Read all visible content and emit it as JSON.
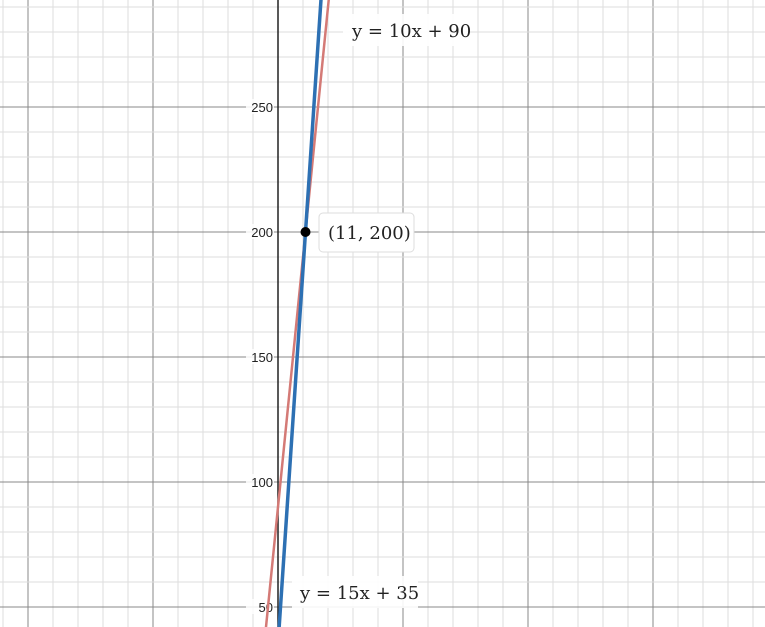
{
  "chart_data": {
    "type": "line",
    "title": "",
    "xlabel": "",
    "ylabel": "",
    "xlim": [
      -111.2,
      194.8
    ],
    "ylim": [
      42,
      292.8
    ],
    "grid": true,
    "major_step": 50,
    "minor_step": 10,
    "y_ticks": [
      "50",
      "100",
      "150",
      "200",
      "250"
    ],
    "series": [
      {
        "name": "y = 10x + 90",
        "slope": 10,
        "intercept": 90,
        "color": "#d47a76"
      },
      {
        "name": "y = 15x + 35",
        "slope": 15,
        "intercept": 35,
        "color": "#2d70b3"
      }
    ],
    "points": [
      {
        "x": 11,
        "y": 200,
        "label": "(11, 200)",
        "color": "#000000"
      }
    ]
  }
}
